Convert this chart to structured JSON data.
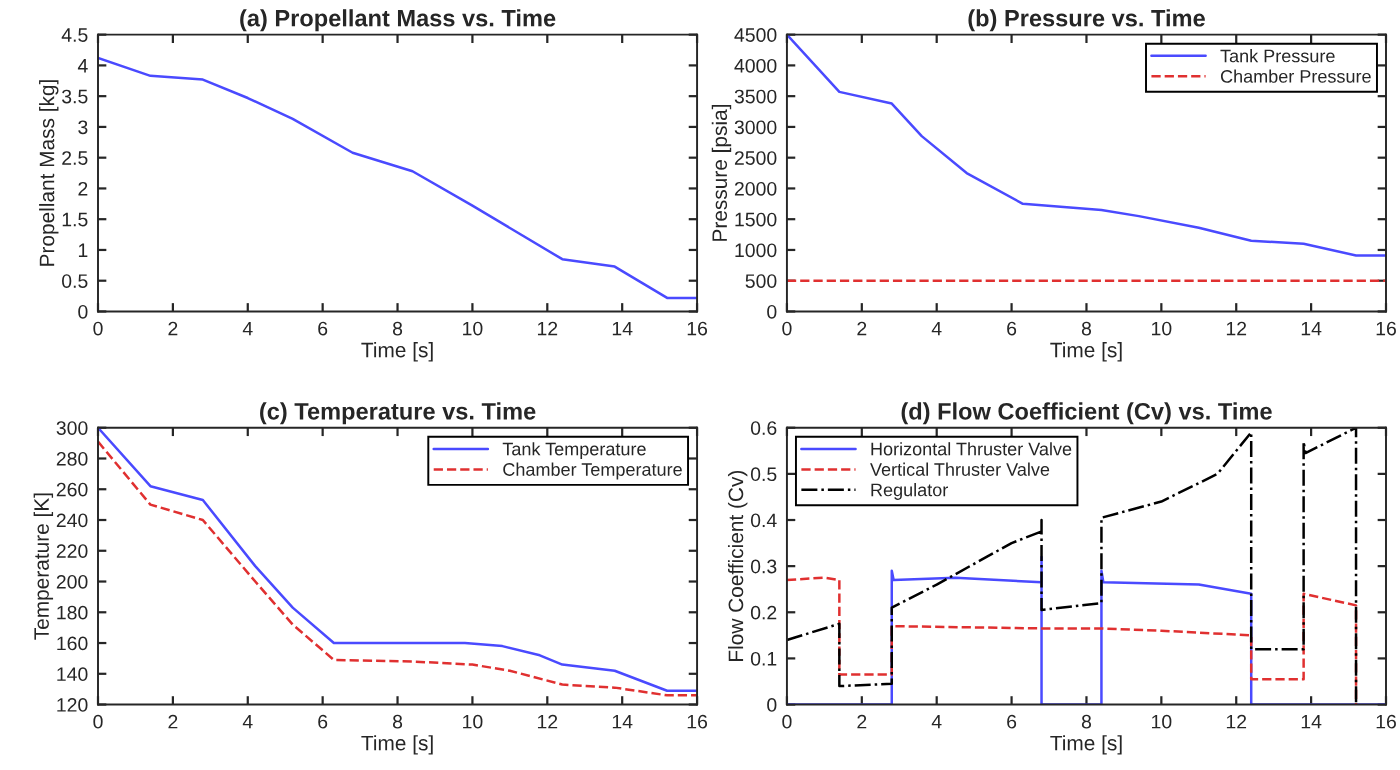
{
  "chart_data": [
    {
      "type": "line",
      "title": "(a) Propellant Mass vs. Time",
      "xlabel": "Time [s]",
      "ylabel": "Propellant Mass [kg]",
      "xlim": [
        0,
        16
      ],
      "xticks": [
        0,
        2,
        4,
        6,
        8,
        10,
        12,
        14,
        16
      ],
      "ylim": [
        0,
        4.5
      ],
      "yticks": [
        0,
        0.5,
        1,
        1.5,
        2,
        2.5,
        3,
        3.5,
        4,
        4.5
      ],
      "grid": false,
      "legend": false,
      "series": [
        {
          "color": "#4a4aff",
          "line_style": "solid",
          "x": [
            0,
            1.4,
            2.8,
            4,
            5.2,
            6.8,
            8.4,
            10,
            12.4,
            13.8,
            15.2,
            16
          ],
          "values": [
            4.12,
            3.83,
            3.77,
            3.47,
            3.13,
            2.58,
            2.28,
            1.72,
            0.85,
            0.73,
            0.22,
            0.22
          ]
        }
      ]
    },
    {
      "type": "line",
      "title": "(b) Pressure vs. Time",
      "xlabel": "Time [s]",
      "ylabel": "Pressure [psia]",
      "xlim": [
        0,
        16
      ],
      "xticks": [
        0,
        2,
        4,
        6,
        8,
        10,
        12,
        14,
        16
      ],
      "ylim": [
        0,
        4500
      ],
      "yticks": [
        0,
        500,
        1000,
        1500,
        2000,
        2500,
        3000,
        3500,
        4000,
        4500
      ],
      "grid": false,
      "legend": "top right",
      "series": [
        {
          "name": "Tank Pressure",
          "color": "#4a4aff",
          "line_style": "solid",
          "x": [
            0,
            1.4,
            2.8,
            3.6,
            4.8,
            6.3,
            8.4,
            9.4,
            11,
            12.4,
            13.8,
            15.2,
            16
          ],
          "values": [
            4500,
            3570,
            3380,
            2850,
            2250,
            1750,
            1650,
            1550,
            1360,
            1150,
            1100,
            910,
            910
          ]
        },
        {
          "name": "Chamber Pressure",
          "color": "#e03030",
          "line_style": "dashed",
          "x": [
            0,
            16
          ],
          "values": [
            500,
            500
          ]
        }
      ]
    },
    {
      "type": "line",
      "title": "(c) Temperature vs. Time",
      "xlabel": "Time [s]",
      "ylabel": "Temperature [K]",
      "xlim": [
        0,
        16
      ],
      "xticks": [
        0,
        2,
        4,
        6,
        8,
        10,
        12,
        14,
        16
      ],
      "ylim": [
        120,
        300
      ],
      "yticks": [
        120,
        140,
        160,
        180,
        200,
        220,
        240,
        260,
        280,
        300
      ],
      "grid": false,
      "legend": "top right",
      "series": [
        {
          "name": "Tank Temperature",
          "color": "#4a4aff",
          "line_style": "solid",
          "x": [
            0,
            1.4,
            2.8,
            4.2,
            5.2,
            6.3,
            9.8,
            10.8,
            11.8,
            12.4,
            13.8,
            15.2,
            16
          ],
          "values": [
            300,
            262,
            253,
            210,
            183,
            160,
            160,
            158,
            152,
            146,
            142,
            129,
            129
          ]
        },
        {
          "name": "Chamber Temperature",
          "color": "#e03030",
          "line_style": "dashed",
          "x": [
            0,
            1.4,
            2.8,
            4.2,
            5.2,
            6.3,
            8.4,
            10,
            11,
            12.4,
            13.8,
            15.2,
            16
          ],
          "values": [
            291,
            250,
            240,
            200,
            172,
            149,
            148,
            146,
            142,
            133,
            131,
            126,
            126
          ]
        }
      ]
    },
    {
      "type": "line",
      "title": "(d) Flow Coefficient (Cv) vs. Time",
      "xlabel": "Time [s]",
      "ylabel": "Flow Coefficient (Cv)",
      "xlim": [
        0,
        16
      ],
      "xticks": [
        0,
        2,
        4,
        6,
        8,
        10,
        12,
        14,
        16
      ],
      "ylim": [
        0,
        0.6
      ],
      "yticks": [
        0,
        0.1,
        0.2,
        0.3,
        0.4,
        0.5,
        0.6
      ],
      "grid": false,
      "legend": "top left",
      "series": [
        {
          "name": "Horizontal Thruster Valve",
          "color": "#4a4aff",
          "line_style": "solid",
          "x": [
            0,
            2.8,
            2.8,
            2.85,
            4.5,
            6.8,
            6.8,
            6.8,
            8.4,
            8.4,
            8.45,
            11,
            12.4,
            12.4,
            16
          ],
          "values": [
            0,
            0,
            0.29,
            0.27,
            0.275,
            0.265,
            0.32,
            0,
            0,
            0.29,
            0.265,
            0.26,
            0.24,
            0,
            0
          ]
        },
        {
          "name": "Vertical Thruster Valve",
          "color": "#e03030",
          "line_style": "dashed",
          "x": [
            0,
            1,
            1.4,
            1.4,
            2.8,
            2.8,
            6.8,
            8.4,
            10,
            12.4,
            12.4,
            13.8,
            13.8,
            15.2,
            15.2
          ],
          "values": [
            0.27,
            0.275,
            0.27,
            0.065,
            0.065,
            0.17,
            0.165,
            0.165,
            0.16,
            0.15,
            0.055,
            0.055,
            0.24,
            0.215,
            0
          ]
        },
        {
          "name": "Regulator",
          "color": "#000000",
          "line_style": "dashdot",
          "x": [
            0,
            1.4,
            1.4,
            2.8,
            2.8,
            4,
            6,
            6.8,
            6.8,
            6.8,
            8.4,
            8.4,
            10,
            11.5,
            12.4,
            12.4,
            13.8,
            13.8,
            13.85,
            15.2,
            15.2
          ],
          "values": [
            0.14,
            0.175,
            0.04,
            0.045,
            0.21,
            0.26,
            0.35,
            0.375,
            0.4,
            0.205,
            0.22,
            0.405,
            0.44,
            0.5,
            0.59,
            0.12,
            0.12,
            0.57,
            0.545,
            0.6,
            0
          ]
        }
      ]
    }
  ]
}
